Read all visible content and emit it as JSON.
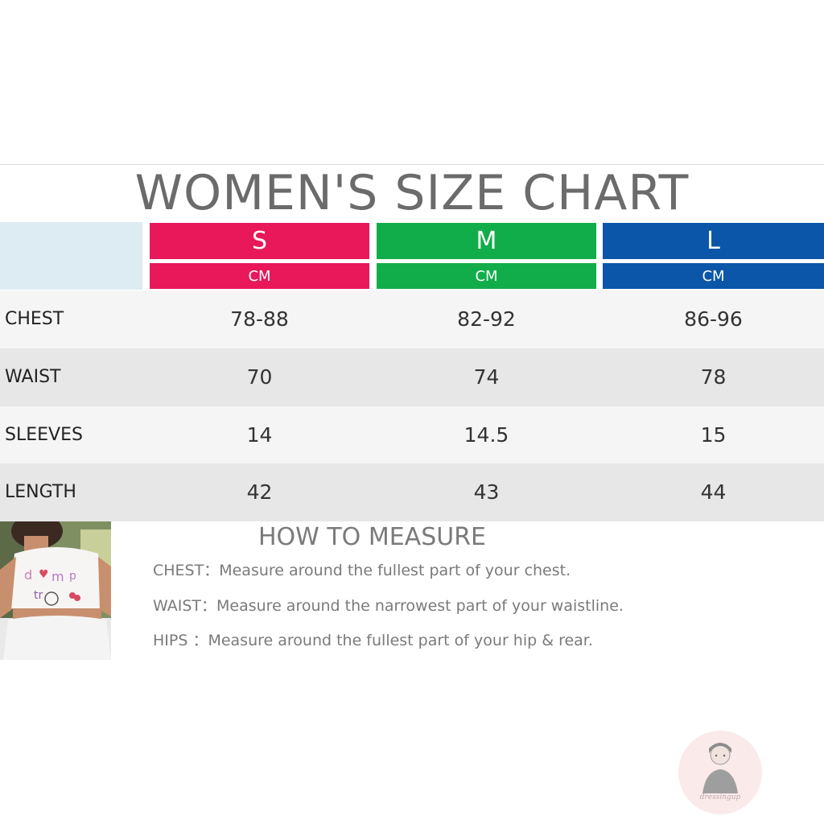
{
  "title": "WOMEN'S SIZE CHART",
  "sizes": [
    {
      "label": "S",
      "unit": "CM",
      "color": "#e8185b"
    },
    {
      "label": "M",
      "unit": "CM",
      "color": "#11ad4b"
    },
    {
      "label": "L",
      "unit": "CM",
      "color": "#0b56a8"
    }
  ],
  "rows": [
    {
      "label": "CHEST",
      "s": "78-88",
      "m": "82-92",
      "l": "86-96"
    },
    {
      "label": "WAIST",
      "s": "70",
      "m": "74",
      "l": "78"
    },
    {
      "label": "SLEEVES",
      "s": "14",
      "m": "14.5",
      "l": "15"
    },
    {
      "label": "LENGTH",
      "s": "42",
      "m": "43",
      "l": "44"
    }
  ],
  "how_to_measure": {
    "title": "HOW TO MEASURE",
    "lines": [
      "CHEST：Measure around the fullest part of your chest.",
      "WAIST：Measure around the narrowest part of your waistline.",
      "HIPS ：Measure around the fullest part of your hip & rear."
    ]
  },
  "watermark": {
    "text": "dressingup",
    "icon": "avatar-logo-icon"
  },
  "photo": {
    "icon": "model-photo"
  }
}
